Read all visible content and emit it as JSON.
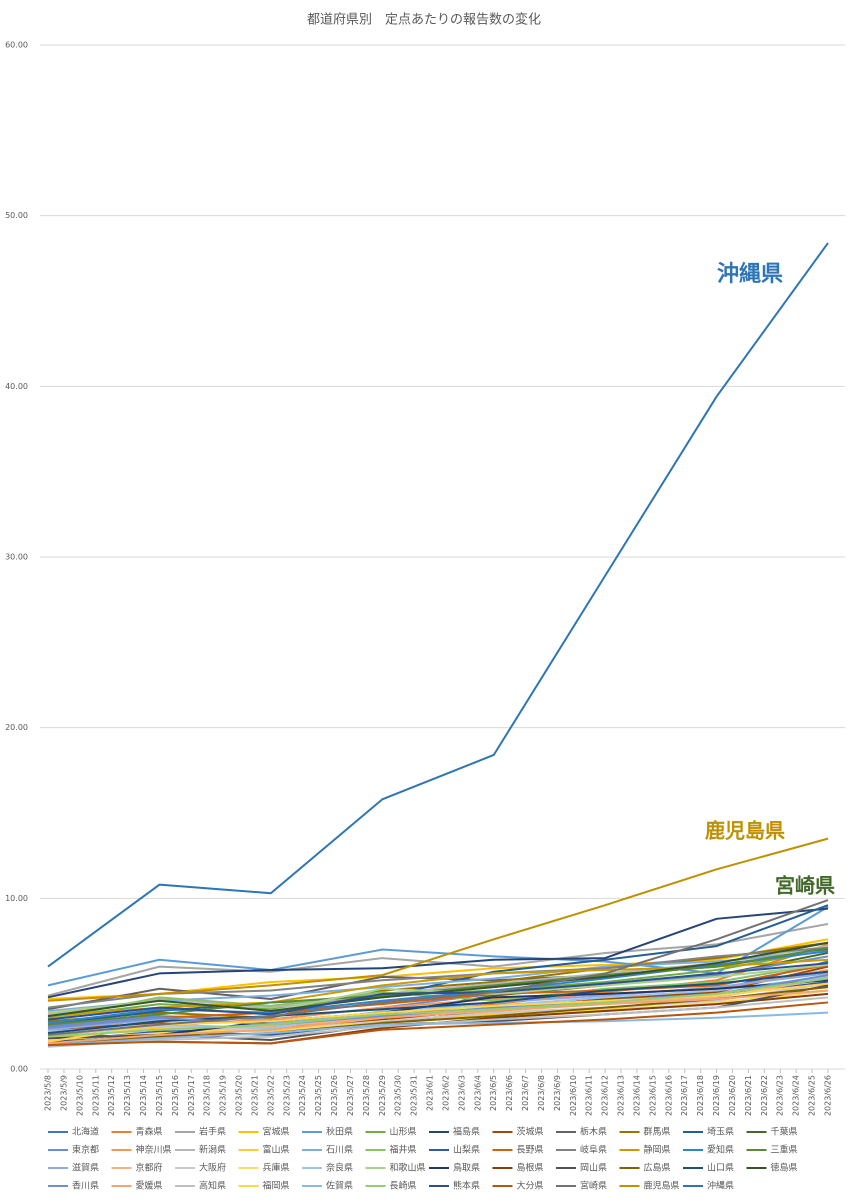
{
  "chart_data": {
    "type": "line",
    "title": "都道府県別　定点あたりの報告数の変化",
    "x": [
      "2023/5/8",
      "2023/5/15",
      "2023/5/22",
      "2023/5/29",
      "2023/6/5",
      "2023/6/12",
      "2023/6/19",
      "2023/6/26"
    ],
    "xlim": [
      "2023/5/8",
      "2023/6/26"
    ],
    "xticks": [
      "2023/5/8",
      "2023/5/9",
      "2023/5/10",
      "2023/5/11",
      "2023/5/12",
      "2023/5/13",
      "2023/5/14",
      "2023/5/15",
      "2023/5/16",
      "2023/5/17",
      "2023/5/18",
      "2023/5/19",
      "2023/5/20",
      "2023/5/21",
      "2023/5/22",
      "2023/5/23",
      "2023/5/24",
      "2023/5/25",
      "2023/5/26",
      "2023/5/27",
      "2023/5/28",
      "2023/5/29",
      "2023/5/30",
      "2023/5/31",
      "2023/6/1",
      "2023/6/2",
      "2023/6/3",
      "2023/6/4",
      "2023/6/5",
      "2023/6/6",
      "2023/6/7",
      "2023/6/8",
      "2023/6/9",
      "2023/6/10",
      "2023/6/11",
      "2023/6/12",
      "2023/6/13",
      "2023/6/14",
      "2023/6/15",
      "2023/6/16",
      "2023/6/17",
      "2023/6/18",
      "2023/6/19",
      "2023/6/20",
      "2023/6/21",
      "2023/6/22",
      "2023/6/23",
      "2023/6/24",
      "2023/6/25",
      "2023/6/26"
    ],
    "ylim": [
      0,
      60
    ],
    "yticks": [
      {
        "value": 0,
        "label": "0.00"
      },
      {
        "value": 10,
        "label": "10.00"
      },
      {
        "value": 20,
        "label": "20.00"
      },
      {
        "value": 30,
        "label": "30.00"
      },
      {
        "value": 40,
        "label": "40.00"
      },
      {
        "value": 50,
        "label": "50.00"
      },
      {
        "value": 60,
        "label": "60.00"
      }
    ],
    "grid": true,
    "legend": "bottom",
    "series": [
      {
        "name": "北海道",
        "color": "#4472c4",
        "values": [
          2.9,
          2.2,
          2.5,
          3.0,
          3.4,
          4.0,
          4.6,
          6.3
        ]
      },
      {
        "name": "青森県",
        "color": "#ed7d31",
        "values": [
          2.0,
          2.5,
          2.3,
          3.1,
          3.8,
          4.5,
          5.2,
          7.3
        ]
      },
      {
        "name": "岩手県",
        "color": "#a5a5a5",
        "values": [
          4.3,
          6.0,
          5.7,
          6.5,
          6.0,
          6.8,
          7.3,
          8.5
        ]
      },
      {
        "name": "宮城県",
        "color": "#ffc000",
        "values": [
          4.1,
          4.4,
          5.1,
          5.4,
          5.9,
          6.1,
          6.4,
          7.6
        ]
      },
      {
        "name": "秋田県",
        "color": "#5b9bd5",
        "values": [
          4.9,
          6.4,
          5.8,
          7.0,
          6.6,
          6.3,
          5.6,
          9.5
        ]
      },
      {
        "name": "山形県",
        "color": "#70ad47",
        "values": [
          3.0,
          3.8,
          3.5,
          4.3,
          4.6,
          5.1,
          5.8,
          7.0
        ]
      },
      {
        "name": "福島県",
        "color": "#264478",
        "values": [
          4.2,
          5.6,
          5.8,
          5.9,
          6.4,
          6.5,
          8.8,
          9.4
        ]
      },
      {
        "name": "茨城県",
        "color": "#9e480e",
        "values": [
          2.3,
          2.7,
          2.2,
          2.9,
          3.5,
          4.1,
          4.5,
          6.0
        ]
      },
      {
        "name": "栃木県",
        "color": "#636363",
        "values": [
          3.5,
          4.7,
          4.1,
          5.4,
          5.2,
          5.5,
          6.0,
          7.0
        ]
      },
      {
        "name": "群馬県",
        "color": "#997300",
        "values": [
          2.8,
          3.3,
          3.0,
          4.6,
          5.1,
          5.9,
          6.5,
          7.4
        ]
      },
      {
        "name": "埼玉県",
        "color": "#255e91",
        "values": [
          2.6,
          3.4,
          3.9,
          4.2,
          5.7,
          6.4,
          7.2,
          9.6
        ]
      },
      {
        "name": "千葉県",
        "color": "#43682b",
        "values": [
          2.1,
          1.8,
          2.6,
          3.2,
          4.3,
          4.9,
          5.5,
          6.8
        ]
      },
      {
        "name": "東京都",
        "color": "#698ed0",
        "values": [
          2.5,
          3.1,
          2.9,
          3.6,
          4.4,
          5.0,
          5.5,
          6.6
        ]
      },
      {
        "name": "神奈川県",
        "color": "#f1975a",
        "values": [
          2.2,
          2.6,
          2.9,
          3.6,
          4.1,
          4.4,
          4.7,
          5.8
        ]
      },
      {
        "name": "新潟県",
        "color": "#b7b7b7",
        "values": [
          3.2,
          4.1,
          3.6,
          4.4,
          5.0,
          5.6,
          6.2,
          7.2
        ]
      },
      {
        "name": "富山県",
        "color": "#ffcd33",
        "values": [
          1.8,
          2.4,
          2.2,
          2.8,
          3.2,
          3.5,
          3.8,
          4.6
        ]
      },
      {
        "name": "石川県",
        "color": "#7cafdd",
        "values": [
          3.4,
          4.0,
          4.3,
          4.8,
          5.3,
          6.0,
          6.3,
          6.9
        ]
      },
      {
        "name": "福井県",
        "color": "#8cc168",
        "values": [
          2.9,
          4.2,
          3.7,
          4.5,
          4.0,
          4.7,
          5.1,
          6.2
        ]
      },
      {
        "name": "山梨県",
        "color": "#335aa1",
        "values": [
          1.6,
          2.2,
          2.0,
          2.7,
          3.4,
          3.9,
          4.3,
          5.1
        ]
      },
      {
        "name": "長野県",
        "color": "#d26012",
        "values": [
          2.4,
          3.0,
          3.3,
          3.8,
          4.4,
          4.6,
          4.9,
          6.1
        ]
      },
      {
        "name": "岐阜県",
        "color": "#828282",
        "values": [
          3.6,
          4.4,
          4.6,
          5.2,
          5.6,
          5.9,
          6.6,
          7.1
        ]
      },
      {
        "name": "静岡県",
        "color": "#cc9a00",
        "values": [
          3.1,
          3.6,
          3.9,
          4.9,
          5.6,
          5.8,
          6.0,
          6.4
        ]
      },
      {
        "name": "愛知県",
        "color": "#3284c8",
        "values": [
          2.7,
          3.5,
          3.3,
          4.0,
          4.6,
          5.3,
          6.1,
          6.9
        ]
      },
      {
        "name": "三重県",
        "color": "#5a8a39",
        "values": [
          2.6,
          3.2,
          3.9,
          4.3,
          4.9,
          5.5,
          6.0,
          7.1
        ]
      },
      {
        "name": "滋賀県",
        "color": "#8faadc",
        "values": [
          2.3,
          2.9,
          2.7,
          3.3,
          3.9,
          4.3,
          4.8,
          5.6
        ]
      },
      {
        "name": "京都府",
        "color": "#f4b183",
        "values": [
          1.9,
          2.3,
          2.5,
          3.0,
          3.5,
          3.9,
          4.2,
          5.3
        ]
      },
      {
        "name": "大阪府",
        "color": "#c9c9c9",
        "values": [
          2.0,
          2.5,
          2.3,
          2.8,
          3.3,
          3.6,
          4.0,
          5.0
        ]
      },
      {
        "name": "兵庫県",
        "color": "#ffd966",
        "values": [
          1.7,
          2.1,
          2.3,
          2.7,
          3.1,
          3.4,
          3.9,
          4.6
        ]
      },
      {
        "name": "奈良県",
        "color": "#9dc3e6",
        "values": [
          2.2,
          2.6,
          2.4,
          3.4,
          3.7,
          4.2,
          4.6,
          5.4
        ]
      },
      {
        "name": "和歌山県",
        "color": "#a9d18e",
        "values": [
          3.3,
          4.0,
          3.4,
          4.7,
          4.4,
          4.9,
          5.4,
          6.1
        ]
      },
      {
        "name": "鳥取県",
        "color": "#203864",
        "values": [
          1.5,
          2.0,
          2.8,
          3.3,
          4.2,
          4.4,
          4.7,
          5.2
        ]
      },
      {
        "name": "島根県",
        "color": "#843c0c",
        "values": [
          1.6,
          1.6,
          1.5,
          2.4,
          3.0,
          3.4,
          3.8,
          4.4
        ]
      },
      {
        "name": "岡山県",
        "color": "#525252",
        "values": [
          1.8,
          2.0,
          1.7,
          2.6,
          2.8,
          3.2,
          3.6,
          4.9
        ]
      },
      {
        "name": "広島県",
        "color": "#7f6000",
        "values": [
          1.4,
          1.9,
          2.1,
          2.7,
          3.1,
          3.6,
          4.1,
          4.8
        ]
      },
      {
        "name": "山口県",
        "color": "#1f4e79",
        "values": [
          2.1,
          2.8,
          3.1,
          3.5,
          3.9,
          4.6,
          5.0,
          5.7
        ]
      },
      {
        "name": "徳島県",
        "color": "#375623",
        "values": [
          3.1,
          4.0,
          3.4,
          4.2,
          4.8,
          5.4,
          6.2,
          7.4
        ]
      },
      {
        "name": "香川県",
        "color": "#6f8fd0",
        "values": [
          2.4,
          3.0,
          2.6,
          3.1,
          3.6,
          4.0,
          4.4,
          5.5
        ]
      },
      {
        "name": "愛媛県",
        "color": "#f4a470",
        "values": [
          1.5,
          2.0,
          2.3,
          3.0,
          3.4,
          3.8,
          4.1,
          4.6
        ]
      },
      {
        "name": "高知県",
        "color": "#bfbfbf",
        "values": [
          1.3,
          1.7,
          1.9,
          2.5,
          2.9,
          3.2,
          3.6,
          4.2
        ]
      },
      {
        "name": "福岡県",
        "color": "#ffd54f",
        "values": [
          1.6,
          2.6,
          2.8,
          3.3,
          3.7,
          4.0,
          4.3,
          5.0
        ]
      },
      {
        "name": "佐賀県",
        "color": "#8ab8e0",
        "values": [
          1.4,
          1.8,
          2.1,
          2.6,
          2.7,
          2.8,
          3.0,
          3.3
        ]
      },
      {
        "name": "長崎県",
        "color": "#97cc72",
        "values": [
          1.9,
          2.3,
          2.6,
          3.2,
          3.5,
          3.9,
          4.4,
          5.3
        ]
      },
      {
        "name": "熊本県",
        "color": "#2f4f8f",
        "values": [
          2.9,
          3.6,
          3.2,
          4.4,
          4.5,
          5.0,
          5.6,
          6.2
        ]
      },
      {
        "name": "大分県",
        "color": "#b8560e",
        "values": [
          1.4,
          1.6,
          1.5,
          2.3,
          2.6,
          2.9,
          3.3,
          3.9
        ]
      },
      {
        "name": "宮崎県",
        "color": "#737373",
        "values": [
          2.0,
          2.6,
          3.1,
          3.9,
          4.5,
          5.6,
          7.6,
          9.9
        ]
      },
      {
        "name": "鹿児島県",
        "color": "#bf9000",
        "values": [
          4.0,
          4.4,
          4.9,
          5.5,
          7.6,
          9.6,
          11.7,
          13.5
        ]
      },
      {
        "name": "沖縄県",
        "color": "#2e75b6",
        "values": [
          6.0,
          10.8,
          10.3,
          15.8,
          18.4,
          28.9,
          39.4,
          48.4
        ]
      }
    ],
    "annotations": [
      {
        "text": "沖縄県",
        "color": "#2e75b6"
      },
      {
        "text": "鹿児島県",
        "color": "#bf9000"
      },
      {
        "text": "宮崎県",
        "color": "#43682b"
      }
    ]
  }
}
